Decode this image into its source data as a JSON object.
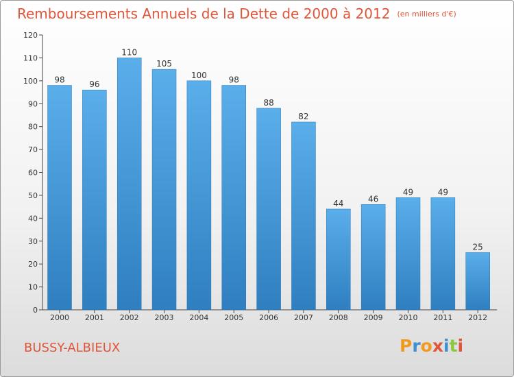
{
  "header": {
    "title": "Remboursements Annuels de la Dette de 2000 à 2012",
    "subtitle": "(en milliers d'€)"
  },
  "commune": "BUSSY-ALBIEUX",
  "logo": {
    "text": "Proxiti",
    "letter_colors": [
      "#f29a1e",
      "#3f8fd0",
      "#f29a1e",
      "#e0553a",
      "#3f8fd0",
      "#8dc63f",
      "#e0553a"
    ]
  },
  "colors": {
    "title": "#e0553a",
    "bar_top": "#5aaeea",
    "bar_bottom": "#2f7fc0",
    "axis": "#444444"
  },
  "chart_data": {
    "type": "bar",
    "categories": [
      "2000",
      "2001",
      "2002",
      "2003",
      "2004",
      "2005",
      "2006",
      "2007",
      "2008",
      "2009",
      "2010",
      "2011",
      "2012"
    ],
    "values": [
      98,
      96,
      110,
      105,
      100,
      98,
      88,
      82,
      44,
      46,
      49,
      49,
      25
    ],
    "title": "Remboursements Annuels de la Dette de 2000 à 2012",
    "subtitle": "(en milliers d'€)",
    "xlabel": "",
    "ylabel": "",
    "ylim": [
      0,
      120
    ],
    "yticks": [
      0,
      10,
      20,
      30,
      40,
      50,
      60,
      70,
      80,
      90,
      100,
      110,
      120
    ],
    "grid": false,
    "legend": "none"
  }
}
